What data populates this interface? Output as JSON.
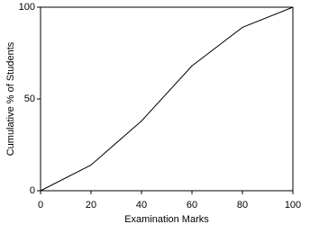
{
  "chart_data": {
    "type": "line",
    "x_label": "Examination Marks",
    "y_label": "Cumulative % of Students",
    "x": [
      0,
      20,
      40,
      60,
      80,
      100
    ],
    "values": [
      0,
      14,
      38,
      68,
      89,
      100
    ],
    "color": "#000000",
    "xlim": [
      0,
      100
    ],
    "xticks": [
      0,
      20,
      40,
      60,
      80,
      100
    ],
    "ylim": [
      0,
      100
    ],
    "yticks": [
      0,
      50,
      100
    ],
    "grid": false
  }
}
